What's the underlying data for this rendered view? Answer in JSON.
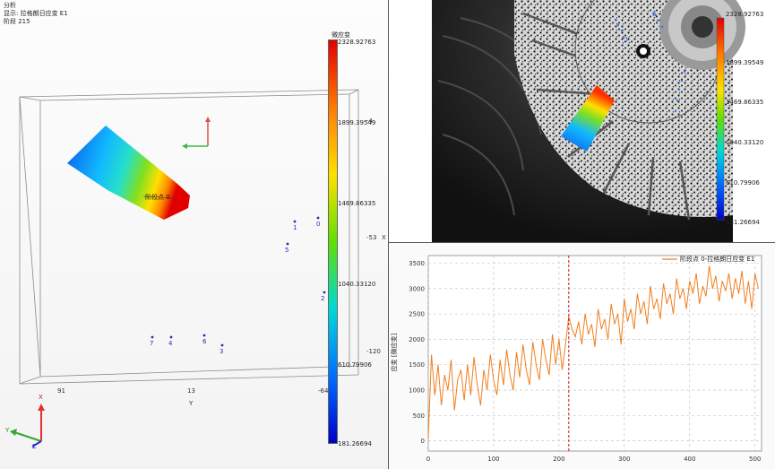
{
  "header": {
    "title": "分析",
    "display": "显示: 拉格朗日应变 E1",
    "stage": "阶段 215"
  },
  "viewport": {
    "colorbar_title": "微应变",
    "colorbar_ticks": [
      "2328.92763",
      "1899.39549",
      "1469.86335",
      "1040.33120",
      "610.79906",
      "181.26694"
    ],
    "colorbar_colors": [
      "#e00000",
      "#ff7a00",
      "#ffe000",
      "#5fe000",
      "#00d8d8",
      "#0070ff",
      "#0000c8"
    ],
    "axis_x_ticks": [
      "91",
      "13",
      "-64"
    ],
    "axis_x_label": "Y",
    "axis_right_ticks": [
      "-4",
      "-53",
      "-120"
    ],
    "axis_right_label": "X",
    "point_label": "阶段点 0",
    "points": [
      "0",
      "1",
      "2",
      "3",
      "4",
      "5",
      "6",
      "7"
    ],
    "triad": {
      "x": "X",
      "y": "Y",
      "z": "Z"
    }
  },
  "camera": {
    "colorbar_ticks": [
      "2328.92763",
      "1899.39549",
      "1469.86335",
      "1040.33120",
      "610.79906",
      "181.26694"
    ],
    "points": [
      "1",
      "5",
      "3"
    ]
  },
  "chart_data": {
    "type": "line",
    "legend": "阶段点 0-拉格朗日应变 E1",
    "ylabel": "应变 [微应变]",
    "xlim": [
      0,
      510
    ],
    "ylim": [
      -200,
      3650
    ],
    "x_ticks": [
      "0",
      "100",
      "200",
      "300",
      "400",
      "500"
    ],
    "y_ticks": [
      "0",
      "500",
      "1000",
      "1500",
      "2000",
      "2500",
      "3000",
      "3500"
    ],
    "marker_x": 215,
    "color": "#f07f1e",
    "series": [
      {
        "x": [
          0,
          5,
          10,
          15,
          20,
          25,
          30,
          35,
          40,
          45,
          50,
          55,
          60,
          65,
          70,
          75,
          80,
          85,
          90,
          95,
          100,
          105,
          110,
          115,
          120,
          125,
          130,
          135,
          140,
          145,
          150,
          155,
          160,
          165,
          170,
          175,
          180,
          185,
          190,
          195,
          200,
          205,
          210,
          215,
          220,
          225,
          230,
          235,
          240,
          245,
          250,
          255,
          260,
          265,
          270,
          275,
          280,
          285,
          290,
          295,
          300,
          305,
          310,
          315,
          320,
          325,
          330,
          335,
          340,
          345,
          350,
          355,
          360,
          365,
          370,
          375,
          380,
          385,
          390,
          395,
          400,
          405,
          410,
          415,
          420,
          425,
          430,
          435,
          440,
          445,
          450,
          455,
          460,
          465,
          470,
          475,
          480,
          485,
          490,
          495,
          500,
          505
        ],
        "y": [
          50,
          1700,
          900,
          1500,
          700,
          1300,
          1000,
          1600,
          600,
          1200,
          1400,
          800,
          1500,
          900,
          1650,
          1100,
          700,
          1400,
          1000,
          1700,
          1200,
          900,
          1600,
          1100,
          1800,
          1300,
          1000,
          1750,
          1250,
          1900,
          1400,
          1100,
          1950,
          1500,
          1200,
          2000,
          1600,
          1300,
          2100,
          1500,
          2000,
          1400,
          1900,
          2450,
          2200,
          2050,
          2350,
          1900,
          2500,
          2100,
          2300,
          1850,
          2600,
          2200,
          2400,
          2000,
          2700,
          2300,
          2500,
          1900,
          2800,
          2350,
          2600,
          2200,
          2900,
          2500,
          2750,
          2300,
          3050,
          2600,
          2800,
          2400,
          3100,
          2700,
          2900,
          2500,
          3200,
          2800,
          3000,
          2600,
          3150,
          2900,
          3300,
          2700,
          3050,
          2850,
          3450,
          3000,
          3250,
          2750,
          3150,
          2950,
          3300,
          2800,
          3200,
          2900,
          3350,
          2700,
          3150,
          2600,
          3300,
          3000
        ]
      }
    ]
  }
}
